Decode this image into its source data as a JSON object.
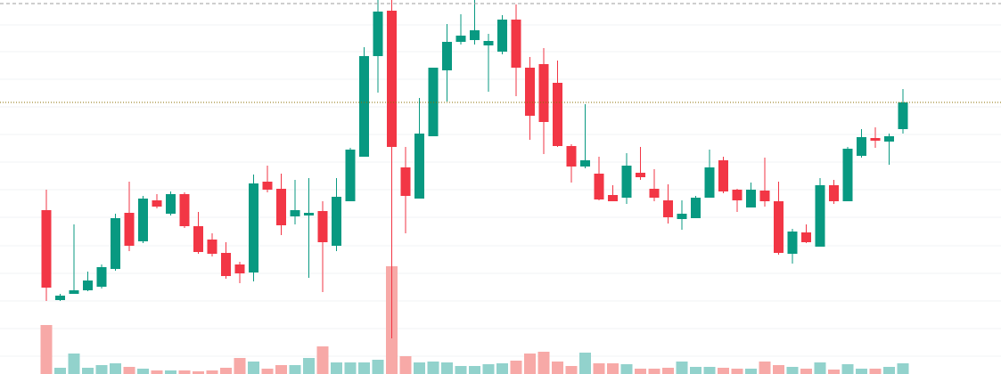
{
  "chart_data": {
    "type": "candlestick",
    "ylim": [
      0,
      420
    ],
    "yticks": [
      20,
      51,
      82,
      113,
      144,
      176,
      207,
      238,
      269,
      300,
      331,
      362,
      392
    ],
    "grid": true,
    "up_color": "#089981",
    "down_color": "#f23645",
    "up_volume_color": "#92d2cc",
    "down_volume_color": "#f7a9a7",
    "volume_ylim": [
      0,
      420
    ],
    "price_line": 305,
    "price_line_color": "#8a6d00",
    "high_line": 416,
    "high_line_color": "#9e9e9e",
    "open": [
      184,
      83,
      90,
      94,
      98,
      118,
      181,
      149,
      195,
      180,
      202,
      166,
      151,
      136,
      123,
      114,
      216,
      208,
      177,
      178,
      183,
      144,
      194,
      244,
      357,
      408,
      232,
      197,
      267,
      341,
      373,
      375,
      369,
      362,
      398,
      344,
      348,
      327,
      256,
      233,
      225,
      201,
      198,
      226,
      208,
      195,
      174,
      175,
      198,
      240,
      207,
      187,
      206,
      194,
      135,
      159,
      143,
      212,
      194,
      245,
      265,
      261,
      275
    ],
    "high": [
      207,
      90,
      168,
      115,
      123,
      180,
      216,
      200,
      202,
      205,
      204,
      182,
      158,
      148,
      126,
      224,
      234,
      225,
      218,
      220,
      194,
      220,
      254,
      367,
      420,
      420,
      255,
      310,
      344,
      393,
      404,
      420,
      382,
      403,
      415,
      356,
      366,
      352,
      258,
      303,
      244,
      212,
      248,
      255,
      230,
      213,
      195,
      200,
      252,
      244,
      208,
      215,
      243,
      216,
      163,
      168,
      220,
      218,
      255,
      275,
      277,
      270,
      320
    ],
    "low": [
      82,
      82,
      90,
      93,
      96,
      116,
      138,
      147,
      186,
      178,
      164,
      135,
      132,
      107,
      102,
      104,
      204,
      156,
      168,
      108,
      92,
      138,
      194,
      244,
      316,
      40,
      158,
      197,
      267,
      306,
      370,
      370,
      317,
      359,
      312,
      263,
      247,
      255,
      215,
      231,
      195,
      194,
      191,
      218,
      194,
      169,
      162,
      175,
      198,
      203,
      182,
      187,
      188,
      134,
      124,
      147,
      143,
      191,
      194,
      243,
      254,
      235,
      270
    ],
    "close": [
      97,
      88,
      94,
      105,
      120,
      175,
      144,
      197,
      188,
      202,
      166,
      137,
      135,
      110,
      113,
      214,
      207,
      167,
      184,
      181,
      148,
      199,
      252,
      357,
      407,
      255,
      200,
      270,
      344,
      373,
      380,
      386,
      374,
      398,
      344,
      290,
      283,
      256,
      233,
      240,
      196,
      194,
      234,
      221,
      198,
      176,
      180,
      198,
      232,
      205,
      195,
      207,
      194,
      136,
      160,
      148,
      212,
      194,
      253,
      266,
      262,
      267,
      305
    ],
    "volume": [
      55,
      7,
      23,
      7,
      10,
      12,
      8,
      6,
      4,
      4,
      4,
      3,
      4,
      7,
      18,
      14,
      6,
      10,
      10,
      18,
      31,
      13,
      13,
      13,
      16,
      121,
      20,
      13,
      14,
      13,
      9,
      9,
      11,
      12,
      15,
      23,
      25,
      14,
      9,
      24,
      12,
      12,
      11,
      6,
      6,
      7,
      14,
      8,
      8,
      7,
      6,
      6,
      14,
      10,
      8,
      6,
      13,
      5,
      11,
      6,
      6,
      8,
      12
    ]
  }
}
